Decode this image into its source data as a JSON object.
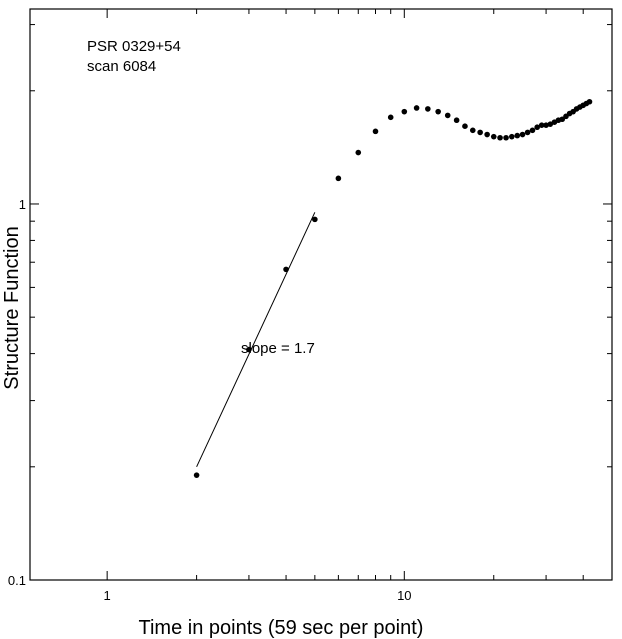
{
  "chart_data": {
    "type": "scatter",
    "title": "",
    "xlabel": "Time in points  (59 sec per point)",
    "ylabel": "Structure Function",
    "xscale": "log",
    "yscale": "log",
    "xlim": [
      0.55,
      50
    ],
    "ylim": [
      0.1,
      3.3
    ],
    "x_ticks": [
      {
        "value": 1,
        "label": "1"
      },
      {
        "value": 10,
        "label": "10"
      }
    ],
    "y_ticks": [
      {
        "value": 0.1,
        "label": "0.1"
      },
      {
        "value": 1,
        "label": "1"
      }
    ],
    "annotation_lines": [
      "PSR  0329+54",
      "scan  6084"
    ],
    "fit": {
      "label": "slope = 1.7",
      "x": [
        2,
        5
      ],
      "y": [
        0.2,
        0.95
      ],
      "slope": 1.7
    },
    "series": [
      {
        "points": [
          [
            2,
            0.19
          ],
          [
            3,
            0.41
          ],
          [
            4,
            0.67
          ],
          [
            5,
            0.91
          ],
          [
            6,
            1.17
          ],
          [
            7,
            1.37
          ],
          [
            8,
            1.56
          ],
          [
            9,
            1.7
          ],
          [
            10,
            1.76
          ],
          [
            11,
            1.8
          ],
          [
            12,
            1.79
          ],
          [
            13,
            1.76
          ],
          [
            14,
            1.72
          ],
          [
            15,
            1.67
          ],
          [
            16,
            1.61
          ],
          [
            17,
            1.57
          ],
          [
            18,
            1.55
          ],
          [
            19,
            1.53
          ],
          [
            20,
            1.51
          ],
          [
            21,
            1.5
          ],
          [
            22,
            1.5
          ],
          [
            23,
            1.51
          ],
          [
            24,
            1.52
          ],
          [
            25,
            1.53
          ],
          [
            26,
            1.55
          ],
          [
            27,
            1.57
          ],
          [
            28,
            1.6
          ],
          [
            29,
            1.62
          ],
          [
            30,
            1.62
          ],
          [
            31,
            1.63
          ],
          [
            32,
            1.65
          ],
          [
            33,
            1.67
          ],
          [
            34,
            1.68
          ],
          [
            35,
            1.71
          ],
          [
            36,
            1.74
          ],
          [
            37,
            1.76
          ],
          [
            38,
            1.79
          ],
          [
            39,
            1.81
          ],
          [
            40,
            1.83
          ],
          [
            41,
            1.85
          ],
          [
            42,
            1.87
          ]
        ]
      }
    ]
  }
}
